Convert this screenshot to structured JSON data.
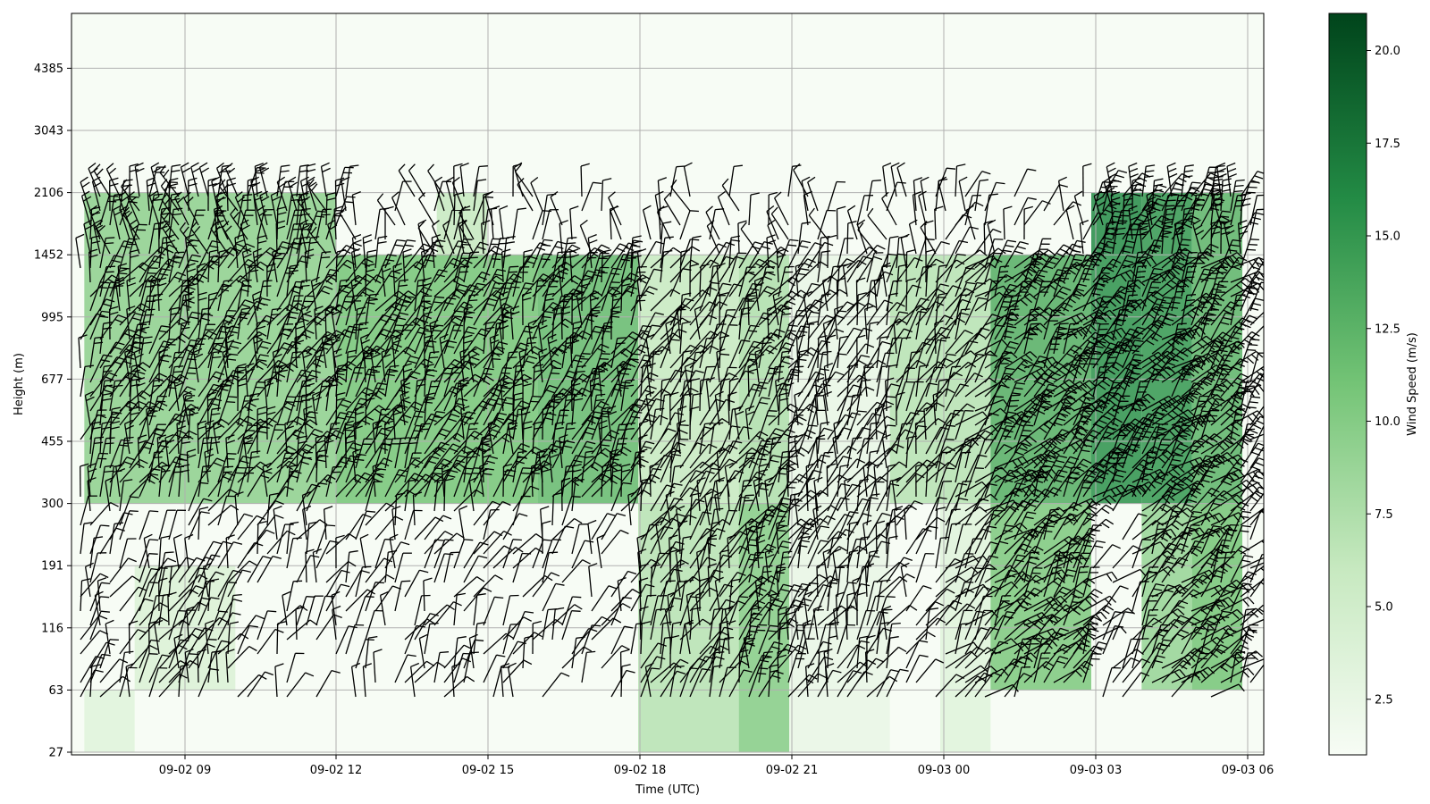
{
  "chart_data": {
    "type": "heatmap",
    "title": "",
    "xlabel": "Time (UTC)",
    "ylabel": "Height (m)",
    "x_ticks": [
      "09-02 09",
      "09-02 12",
      "09-02 15",
      "09-02 18",
      "09-02 21",
      "09-03 00",
      "09-03 03",
      "09-03 06"
    ],
    "y_ticks": [
      "27",
      "63",
      "116",
      "191",
      "300",
      "455",
      "677",
      "995",
      "1452",
      "2106",
      "3043",
      "4385"
    ],
    "colorbar": {
      "label": "Wind Speed (m/s)",
      "ticks": [
        "2.5",
        "5.0",
        "7.5",
        "10.0",
        "12.5",
        "15.0",
        "17.5",
        "20.0"
      ],
      "range": [
        1,
        21
      ],
      "colormap": "Greens",
      "colors": [
        "#f7fcf5",
        "#c7e9c0",
        "#74c476",
        "#238b45",
        "#00441b"
      ]
    },
    "grid": true,
    "overlay": "wind barbs (black)",
    "segments": [
      {
        "time_range": [
          "09-02 07",
          "09-02 08"
        ],
        "height_range": [
          "27",
          "63"
        ],
        "speed": 3.5
      },
      {
        "time_range": [
          "09-02 07",
          "09-02 12"
        ],
        "height_range": [
          "300",
          "2106"
        ],
        "speed": 9.5
      },
      {
        "time_range": [
          "09-02 08",
          "09-02 10"
        ],
        "height_range": [
          "63",
          "191"
        ],
        "speed": 4.0
      },
      {
        "time_range": [
          "09-02 12",
          "09-02 16"
        ],
        "height_range": [
          "300",
          "1452"
        ],
        "speed": 11.0
      },
      {
        "time_range": [
          "09-02 14",
          "09-02 15"
        ],
        "height_range": [
          "1452",
          "2106"
        ],
        "speed": 6.0
      },
      {
        "time_range": [
          "09-02 16",
          "09-02 18"
        ],
        "height_range": [
          "300",
          "1452"
        ],
        "speed": 12.0
      },
      {
        "time_range": [
          "09-02 18",
          "09-02 20"
        ],
        "height_range": [
          "27",
          "300"
        ],
        "speed": 7.0
      },
      {
        "time_range": [
          "09-02 18",
          "09-02 20"
        ],
        "height_range": [
          "300",
          "1452"
        ],
        "speed": 6.0
      },
      {
        "time_range": [
          "09-02 20",
          "09-02 21"
        ],
        "height_range": [
          "27",
          "300"
        ],
        "speed": 10.0
      },
      {
        "time_range": [
          "09-02 20",
          "09-02 21"
        ],
        "height_range": [
          "300",
          "1452"
        ],
        "speed": 7.5
      },
      {
        "time_range": [
          "09-02 21",
          "09-02 23"
        ],
        "height_range": [
          "27",
          "1452"
        ],
        "speed": 2.5
      },
      {
        "time_range": [
          "09-02 23",
          "09-03 01"
        ],
        "height_range": [
          "300",
          "1452"
        ],
        "speed": 7.0
      },
      {
        "time_range": [
          "09-03 00",
          "09-03 01"
        ],
        "height_range": [
          "27",
          "300"
        ],
        "speed": 3.5
      },
      {
        "time_range": [
          "09-03 01",
          "09-03 03"
        ],
        "height_range": [
          "63",
          "300"
        ],
        "speed": 10.5
      },
      {
        "time_range": [
          "09-03 01",
          "09-03 03"
        ],
        "height_range": [
          "300",
          "1452"
        ],
        "speed": 13.0
      },
      {
        "time_range": [
          "09-03 03",
          "09-03 04"
        ],
        "height_range": [
          "300",
          "1452"
        ],
        "speed": 15.5
      },
      {
        "time_range": [
          "09-03 03",
          "09-03 04"
        ],
        "height_range": [
          "1452",
          "2106"
        ],
        "speed": 16.0
      },
      {
        "time_range": [
          "09-03 04",
          "09-03 05"
        ],
        "height_range": [
          "63",
          "300"
        ],
        "speed": 9.0
      },
      {
        "time_range": [
          "09-03 04",
          "09-03 05"
        ],
        "height_range": [
          "300",
          "2106"
        ],
        "speed": 15.0
      },
      {
        "time_range": [
          "09-03 05",
          "09-03 06"
        ],
        "height_range": [
          "63",
          "300"
        ],
        "speed": 11.0
      },
      {
        "time_range": [
          "09-03 05",
          "09-03 06"
        ],
        "height_range": [
          "300",
          "2106"
        ],
        "speed": 12.5
      }
    ]
  }
}
